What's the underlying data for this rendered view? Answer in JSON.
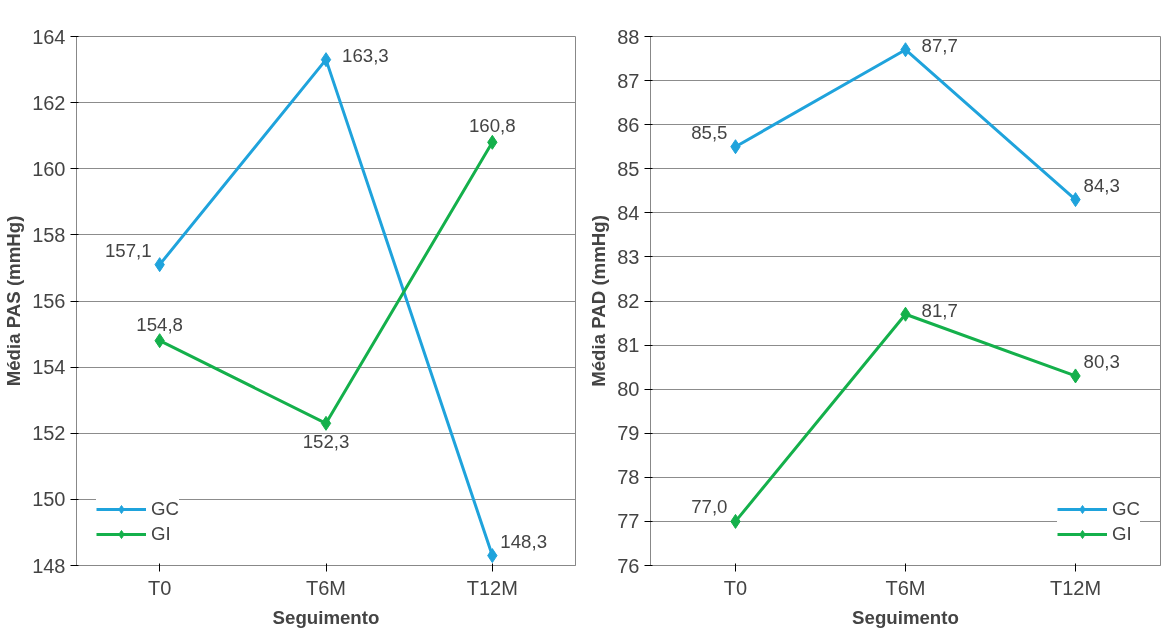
{
  "chart_data": [
    {
      "type": "line",
      "xlabel": "Seguimento",
      "ylabel": "Média PAS (mmHg)",
      "categories": [
        "T0",
        "T6M",
        "T12M"
      ],
      "ylim": [
        148,
        164
      ],
      "yticks": [
        148,
        150,
        152,
        154,
        156,
        158,
        160,
        162,
        164
      ],
      "grid": "y",
      "legend": "bottom left",
      "marker": "diamond",
      "line_style": "solid",
      "series": [
        {
          "name": "GC",
          "color": "#1fa3dc",
          "values": [
            157.1,
            163.3,
            148.3
          ],
          "value_labels": [
            "157,1",
            "163,3",
            "148,3"
          ]
        },
        {
          "name": "GI",
          "color": "#14b04b",
          "values": [
            154.8,
            152.3,
            160.8
          ],
          "value_labels": [
            "154,8",
            "152,3",
            "160,8"
          ]
        }
      ]
    },
    {
      "type": "line",
      "xlabel": "Seguimento",
      "ylabel": "Média PAD (mmHg)",
      "categories": [
        "T0",
        "T6M",
        "T12M"
      ],
      "ylim": [
        76,
        88
      ],
      "yticks": [
        76,
        77,
        78,
        79,
        80,
        81,
        82,
        83,
        84,
        85,
        86,
        87,
        88
      ],
      "grid": "y",
      "legend": "bottom right",
      "marker": "diamond",
      "line_style": "solid",
      "series": [
        {
          "name": "GC",
          "color": "#1fa3dc",
          "values": [
            85.5,
            87.7,
            84.3
          ],
          "value_labels": [
            "85,5",
            "87,7",
            "84,3"
          ]
        },
        {
          "name": "GI",
          "color": "#14b04b",
          "values": [
            77.0,
            81.7,
            80.3
          ],
          "value_labels": [
            "77,0",
            "81,7",
            "80,3"
          ]
        }
      ]
    }
  ]
}
